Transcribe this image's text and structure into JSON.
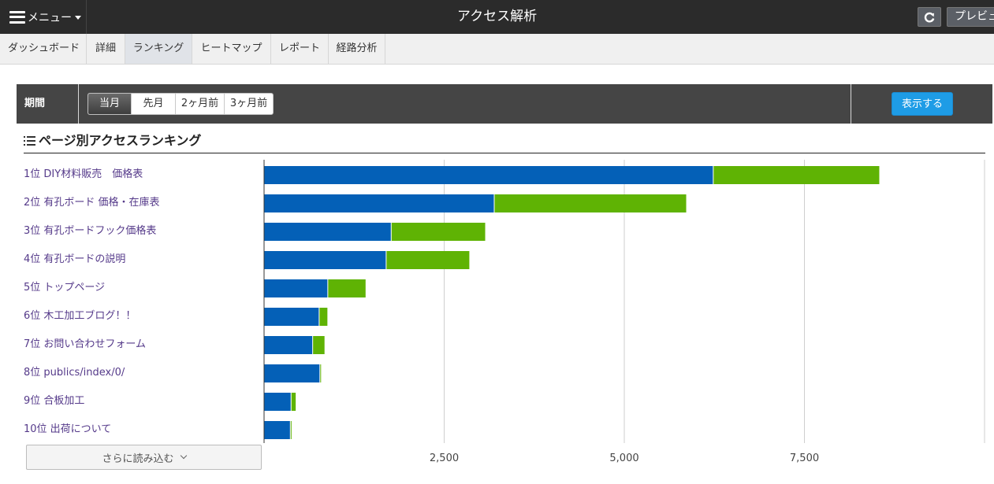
{
  "topbar": {
    "menu_label": "メニュー",
    "title": "アクセス解析",
    "preview_label": "プレビュー"
  },
  "tabs": [
    {
      "label": "ダッシュボード",
      "active": false
    },
    {
      "label": "詳細",
      "active": false
    },
    {
      "label": "ランキング",
      "active": true
    },
    {
      "label": "ヒートマップ",
      "active": false
    },
    {
      "label": "レポート",
      "active": false
    },
    {
      "label": "経路分析",
      "active": false
    }
  ],
  "period": {
    "label": "期間",
    "options": [
      "当月",
      "先月",
      "2ヶ月前",
      "3ヶ月前"
    ],
    "selected": "当月",
    "submit_label": "表示する"
  },
  "section": {
    "title": "ページ別アクセスランキング"
  },
  "ranking": [
    {
      "label": "1位 DIY材料販売　価格表"
    },
    {
      "label": "2位 有孔ボード 価格・在庫表"
    },
    {
      "label": "3位 有孔ボードフック価格表"
    },
    {
      "label": "4位 有孔ボードの説明"
    },
    {
      "label": "5位 トップページ"
    },
    {
      "label": "6位 木工加工ブログ！！"
    },
    {
      "label": "7位 お問い合わせフォーム"
    },
    {
      "label": "8位 publics/index/0/"
    },
    {
      "label": "9位 合板加工"
    },
    {
      "label": "10位 出荷について"
    }
  ],
  "more_label": "さらに読み込む",
  "colors": {
    "series_1": "#0460b7",
    "series_2": "#5fb304",
    "accent_button": "#1e9ce6"
  },
  "chart_data": {
    "type": "bar",
    "orientation": "horizontal",
    "stacked": true,
    "categories": [
      "1位 DIY材料販売　価格表",
      "2位 有孔ボード 価格・在庫表",
      "3位 有孔ボードフック価格表",
      "4位 有孔ボードの説明",
      "5位 トップページ",
      "6位 木工加工ブログ！！",
      "7位 お問い合わせフォーム",
      "8位 publics/index/0/",
      "9位 合板加工",
      "10位 出荷について"
    ],
    "series": [
      {
        "values": [
          6240,
          3200,
          1770,
          1700,
          890,
          770,
          680,
          780,
          380,
          370
        ]
      },
      {
        "values": [
          2310,
          2670,
          1310,
          1160,
          530,
          120,
          170,
          10,
          70,
          20
        ]
      }
    ],
    "xlim": [
      0,
      10000
    ],
    "ticks": [
      {
        "value": 2500,
        "label": "2,500"
      },
      {
        "value": 5000,
        "label": "5,000"
      },
      {
        "value": 7500,
        "label": "7,500"
      }
    ],
    "grid": true
  }
}
